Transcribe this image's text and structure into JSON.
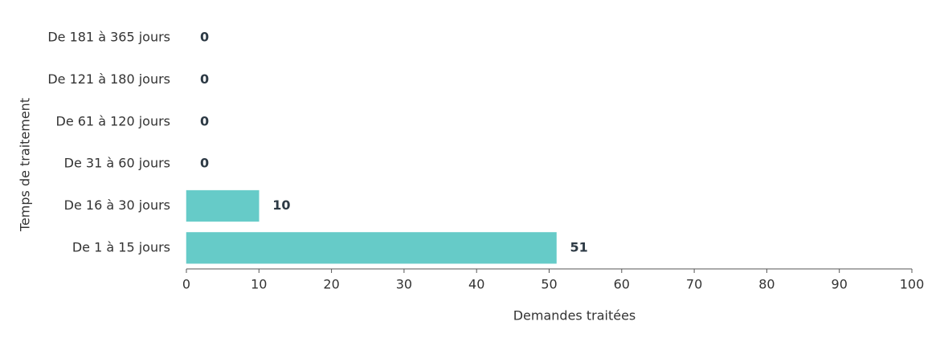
{
  "chart_data": {
    "type": "bar",
    "orientation": "horizontal",
    "categories": [
      "De 181 à 365 jours",
      "De 121 à 180 jours",
      "De 61 à 120 jours",
      "De 31 à 60 jours",
      "De 16 à 30 jours",
      "De 1 à 15 jours"
    ],
    "values": [
      0,
      0,
      0,
      0,
      10,
      51
    ],
    "color": "#66cbc8",
    "xlabel": "Demandes traitées",
    "ylabel": "Temps de traitement",
    "xlim": [
      0,
      100
    ],
    "xticks": [
      0,
      10,
      20,
      30,
      40,
      50,
      60,
      70,
      80,
      90,
      100
    ],
    "grid": false
  }
}
